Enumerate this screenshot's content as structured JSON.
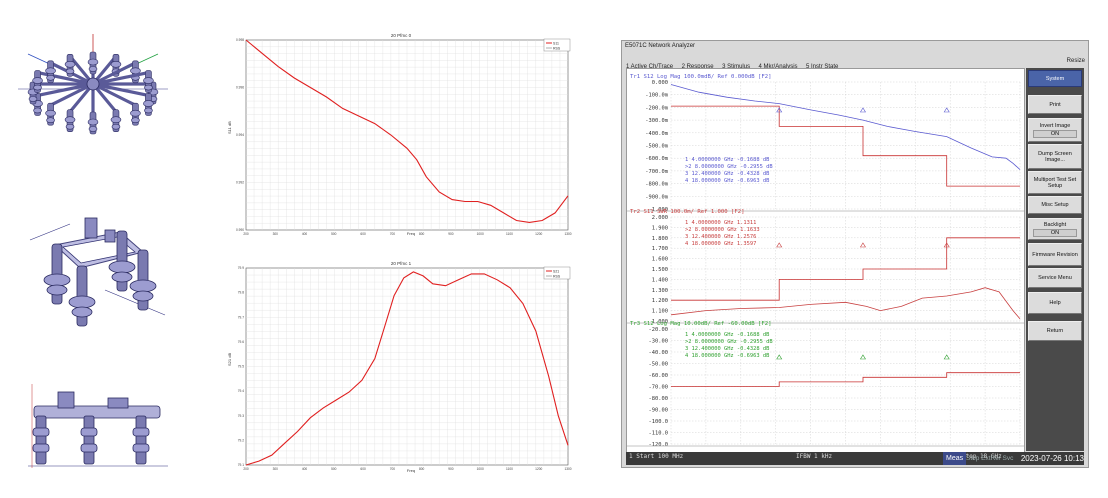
{
  "plot1": {
    "title": "20 Pfmc 0",
    "ylabel": "S11 dB",
    "xlabel": "Freq",
    "legend": [
      "S11",
      "RSS"
    ],
    "xticks": [
      "200",
      "300",
      "400",
      "500",
      "600",
      "700",
      "800",
      "900",
      "1000",
      "1100",
      "1200",
      "1300"
    ],
    "yticks": [
      "0.998",
      "0.996",
      "0.994",
      "0.992",
      "0.990"
    ]
  },
  "plot2": {
    "title": "20 Pfmc 1",
    "ylabel": "S21 dB",
    "xlabel": "Freq",
    "legend": [
      "S21",
      "RSS"
    ],
    "xticks": [
      "200",
      "300",
      "400",
      "500",
      "600",
      "700",
      "800",
      "900",
      "1000",
      "1100",
      "1200",
      "1300"
    ],
    "yticks": [
      "79.9",
      "79.8",
      "79.7",
      "79.6",
      "79.5",
      "79.4",
      "79.3",
      "79.2",
      "79.1"
    ]
  },
  "analyzer": {
    "window_title": "E5071C Network Analyzer",
    "resize_label": "Resize",
    "menu": [
      "1 Active Ch/Trace",
      "2 Response",
      "3 Stimulus",
      "4 Mkr/Analysis",
      "5 Instr State"
    ],
    "softkeys": [
      {
        "label": "System",
        "sub": ""
      },
      {
        "label": "Print",
        "sub": ""
      },
      {
        "label": "Invert Image",
        "sub": "ON"
      },
      {
        "label": "Dump Screen Image...",
        "sub": ""
      },
      {
        "label": "Multiport Test Set Setup",
        "sub": ""
      },
      {
        "label": "Misc Setup",
        "sub": ""
      },
      {
        "label": "Backlight",
        "sub": "ON"
      },
      {
        "label": "Firmware Revision",
        "sub": ""
      },
      {
        "label": "Service Menu",
        "sub": ""
      },
      {
        "label": "Help",
        "sub": ""
      },
      {
        "label": "Return",
        "sub": ""
      }
    ],
    "trace1": {
      "header": "Tr1 S12 Log Mag 100.0mdB/ Ref 0.000dB [F2]",
      "yticks": [
        "0.000",
        "-100.0m",
        "-200.0m",
        "-300.0m",
        "-400.0m",
        "-500.0m",
        "-600.0m",
        "-700.0m",
        "-800.0m",
        "-900.0m",
        "-1.000"
      ],
      "markers": [
        "1  4.0000000 GHz -0.1688 dB",
        ">2  8.0000000 GHz -0.2955 dB",
        "3  12.400000 GHz -0.4328 dB",
        "4  18.000000 GHz -0.6963 dB"
      ]
    },
    "trace2": {
      "header": "Tr2 S11 SWR 100.0m/ Ref 1.000 [F2]",
      "yticks": [
        "2.000",
        "1.900",
        "1.800",
        "1.700",
        "1.600",
        "1.500",
        "1.400",
        "1.300",
        "1.200",
        "1.100",
        "1.000"
      ],
      "markers": [
        "1  4.0000000 GHz 1.1311",
        ">2  8.0000000 GHz 1.1633",
        "3  12.400000 GHz 1.2576",
        "4  18.000000 GHz 1.3597"
      ]
    },
    "trace3": {
      "header": "Tr3 S12 Log Mag 10.00dB/ Ref -60.00dB [F2]",
      "yticks": [
        "-20.00",
        "-30.00",
        "-40.00",
        "-50.00",
        "-60.00",
        "-70.00",
        "-80.00",
        "-90.00",
        "-100.0",
        "-110.0",
        "-120.0"
      ],
      "markers": [
        "1  4.0000000 GHz -0.1688 dB",
        ">2  8.0000000 GHz -0.2955 dB",
        "3  12.400000 GHz -0.4328 dB",
        "4  18.000000 GHz -0.6963 dB"
      ]
    },
    "status": {
      "start": "1 Start 100 MHz",
      "ifbw": "IFBW 1 kHz",
      "stop": "Stop 18 GHz",
      "meas": "Meas",
      "flags": "Stop ExtRef Svc",
      "datetime": "2023-07-26 10:13"
    },
    "colors": {
      "trace1": "#5a5ad0",
      "trace2": "#c84040",
      "trace3": "#30a030",
      "limit": "#c83030",
      "softkey_selected": "#4a64a8"
    }
  }
}
